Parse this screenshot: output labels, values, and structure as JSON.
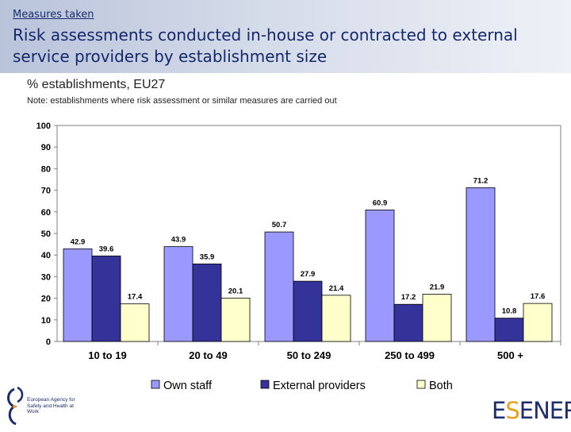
{
  "header": {
    "section": "Measures taken",
    "title": "Risk assessments conducted in-house or contracted to external service providers by establishment size"
  },
  "chart_meta": {
    "subtitle": "% establishments, EU27",
    "note": "Note: establishments where risk assessment or similar measures are carried out"
  },
  "chart_data": {
    "type": "bar",
    "categories": [
      "10 to 19",
      "20 to 49",
      "50 to 249",
      "250 to 499",
      "500 +"
    ],
    "series": [
      {
        "name": "Own staff",
        "color": "#9999ff",
        "values": [
          42.9,
          43.9,
          50.7,
          60.9,
          71.2
        ]
      },
      {
        "name": "External providers",
        "color": "#333399",
        "values": [
          39.6,
          35.9,
          27.9,
          17.2,
          10.8
        ]
      },
      {
        "name": "Both",
        "color": "#ffffcc",
        "values": [
          17.4,
          20.1,
          21.4,
          21.9,
          17.6
        ]
      }
    ],
    "ylim": [
      0,
      100
    ],
    "yticks": [
      0,
      10,
      20,
      30,
      40,
      50,
      60,
      70,
      80,
      90,
      100
    ],
    "legend": "bottom",
    "grid": false
  },
  "footer": {
    "agency_text": "European Agency for Safety and Health at Work",
    "brand_prefix": "E",
    "brand_accent": "S",
    "brand_suffix": "ENER"
  }
}
